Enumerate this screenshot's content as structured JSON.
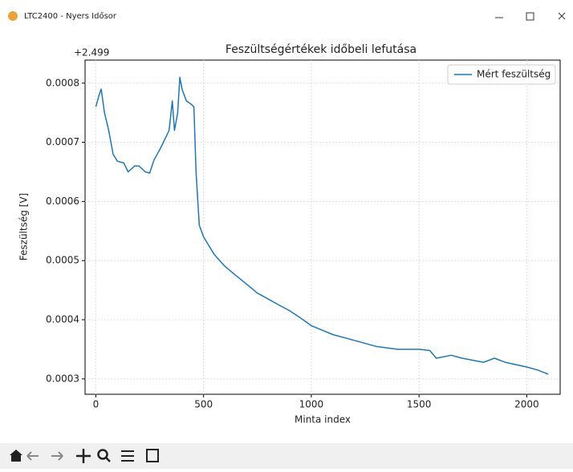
{
  "window": {
    "title": "LTC2400 - Nyers Idősor"
  },
  "chart_data": {
    "type": "line",
    "title": "Feszültségértékek időbeli lefutása",
    "y_offset": "+2.499",
    "xlabel": "Minta index",
    "ylabel": "Feszültség [V]",
    "x": [
      0,
      15,
      25,
      40,
      60,
      80,
      100,
      130,
      150,
      180,
      200,
      230,
      250,
      270,
      300,
      320,
      340,
      355,
      365,
      380,
      390,
      400,
      420,
      440,
      455,
      465,
      480,
      500,
      550,
      600,
      650,
      700,
      750,
      800,
      850,
      900,
      950,
      1000,
      1100,
      1200,
      1300,
      1400,
      1500,
      1550,
      1580,
      1650,
      1700,
      1800,
      1850,
      1900,
      2000,
      2050,
      2100
    ],
    "series": [
      {
        "name": "Mért feszültség",
        "color": "#1f77b4",
        "values": [
          0.00076,
          0.00078,
          0.00079,
          0.00075,
          0.00072,
          0.00068,
          0.000668,
          0.000665,
          0.00065,
          0.00066,
          0.00066,
          0.00065,
          0.000648,
          0.00067,
          0.00069,
          0.000705,
          0.00072,
          0.00077,
          0.00072,
          0.00075,
          0.00081,
          0.00079,
          0.00077,
          0.000765,
          0.00076,
          0.00065,
          0.00056,
          0.00054,
          0.00051,
          0.00049,
          0.000475,
          0.00046,
          0.000445,
          0.000435,
          0.000425,
          0.000415,
          0.000403,
          0.00039,
          0.000375,
          0.000365,
          0.000355,
          0.00035,
          0.00035,
          0.000348,
          0.000335,
          0.00034,
          0.000335,
          0.000328,
          0.000335,
          0.000328,
          0.00032,
          0.000315,
          0.000308
        ]
      }
    ],
    "xlim": [
      -50,
      2155
    ],
    "ylim": [
      0.000274,
      0.000839
    ],
    "xticks": [
      0,
      500,
      1000,
      1500,
      2000
    ],
    "yticks": [
      0.0003,
      0.0004,
      0.0005,
      0.0006,
      0.0007,
      0.0008
    ],
    "grid": true,
    "legend": "upper right"
  }
}
